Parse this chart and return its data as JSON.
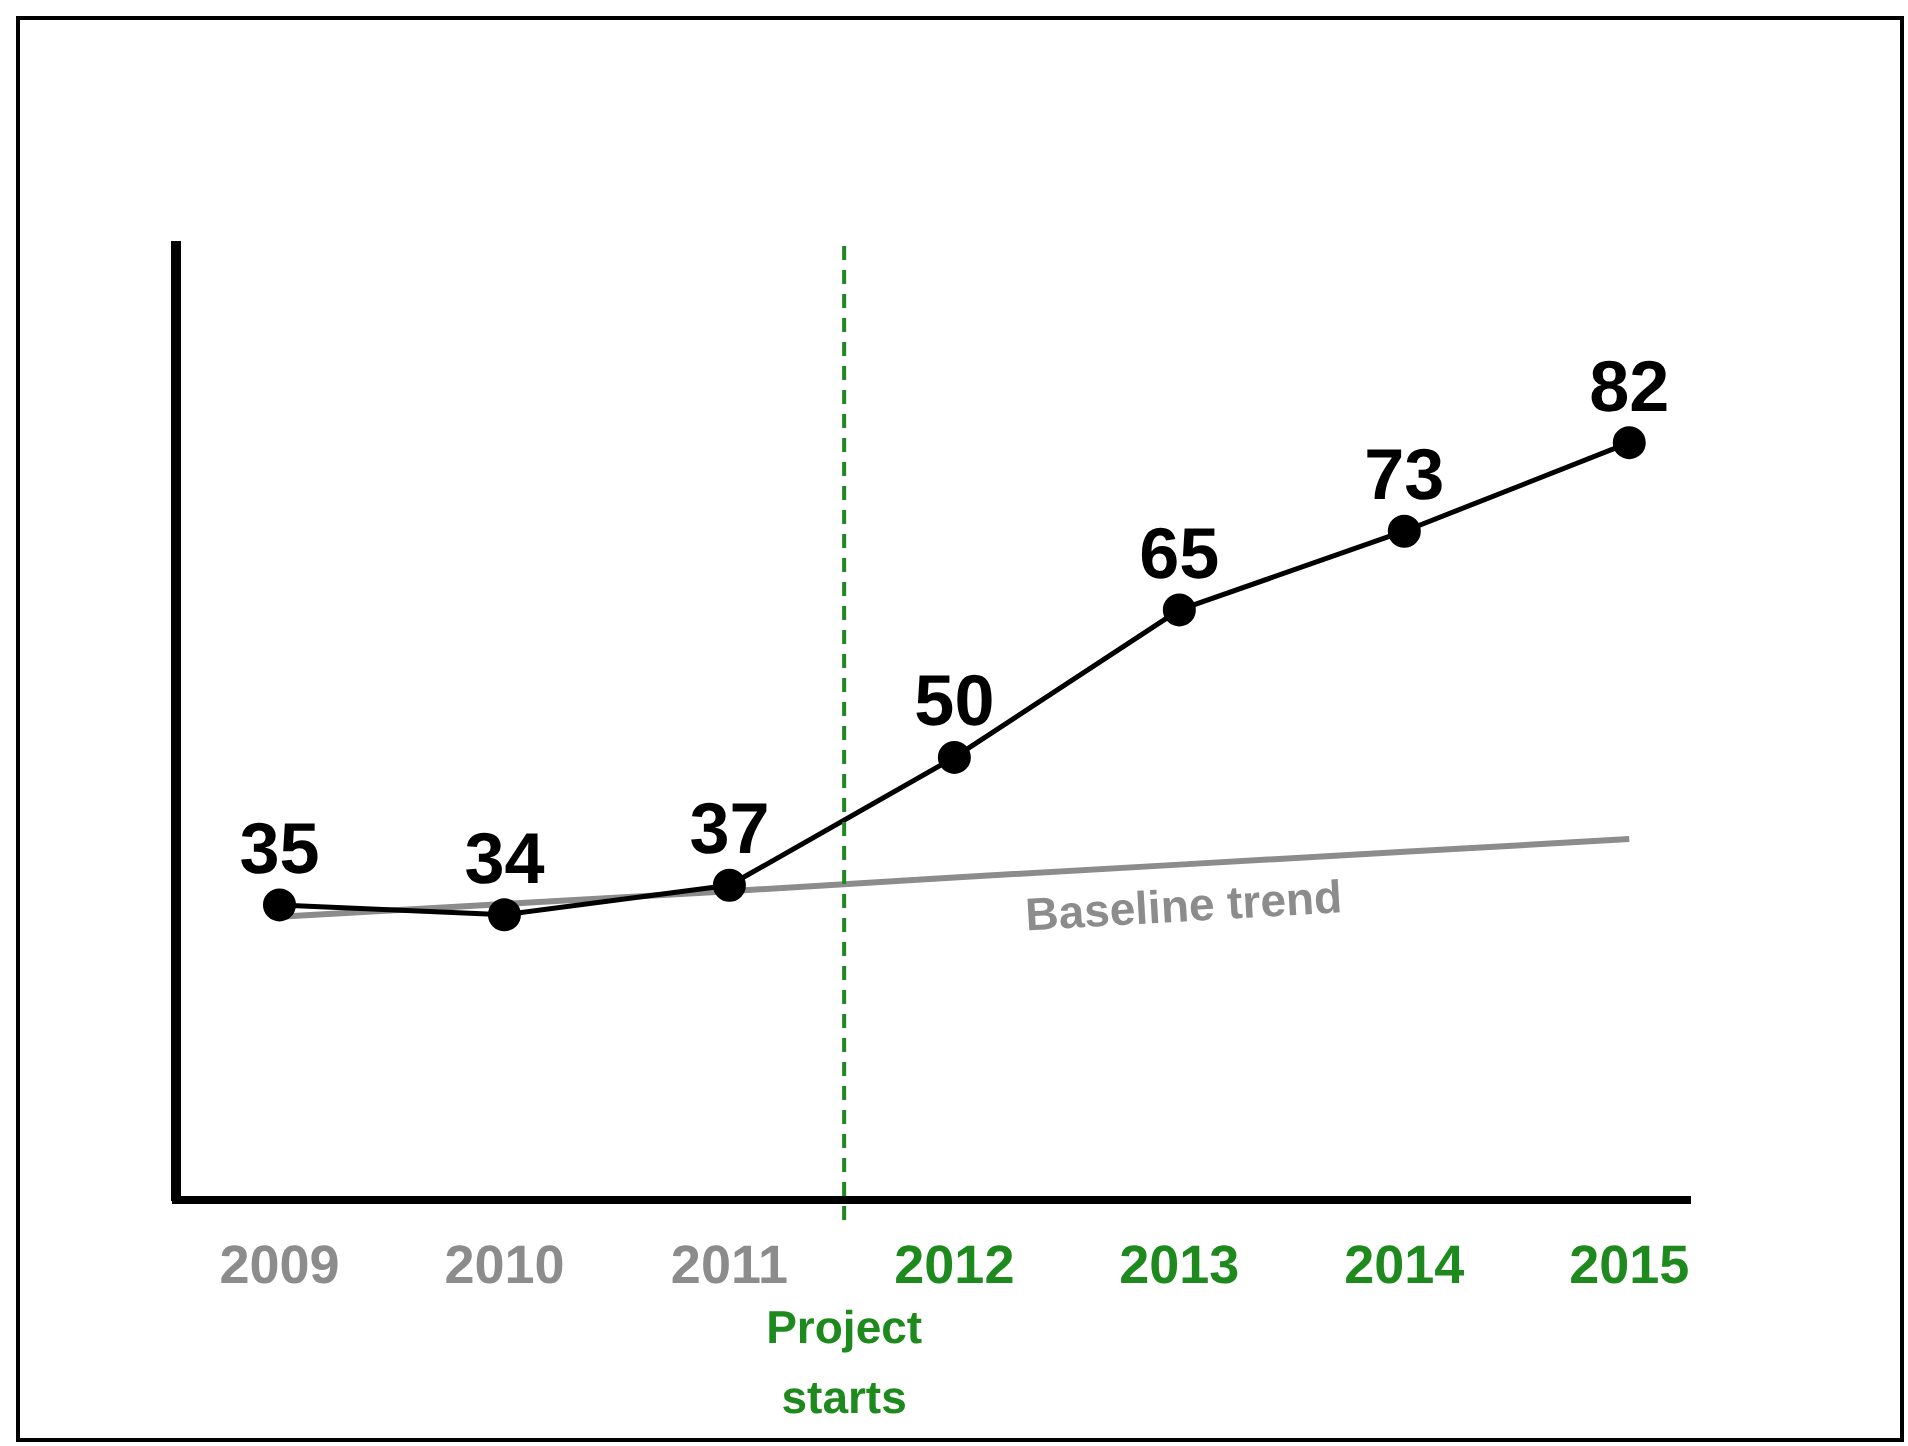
{
  "chart_data": {
    "type": "line",
    "x": [
      2009,
      2010,
      2011,
      2012,
      2013,
      2014,
      2015
    ],
    "xlim": [
      2008.54,
      2015.27
    ],
    "xticks": [
      2009,
      2010,
      2011,
      2012,
      2013,
      2014,
      2015
    ],
    "ylim": [
      5,
      102
    ],
    "series": [
      {
        "color": "#000000",
        "values": [
          35,
          34,
          37,
          50,
          65,
          73,
          82
        ],
        "marker": "circle",
        "value_labels": [
          "35",
          "34",
          "37",
          "50",
          "65",
          "73",
          "82"
        ]
      },
      {
        "name": "Baseline trend",
        "color": "#8c8c8c",
        "values": [
          33.8,
          35.1,
          36.4,
          37.8,
          39.1,
          40.4,
          41.7
        ],
        "marker": "none"
      }
    ],
    "ref_lines": [
      {
        "axis": "x",
        "value": 2011.51,
        "label": "Project starts",
        "color": "#1e8a1e",
        "line_style": "dashed"
      }
    ],
    "grid": false,
    "legend": false,
    "tick_labels": "x",
    "line_style": "solid"
  }
}
